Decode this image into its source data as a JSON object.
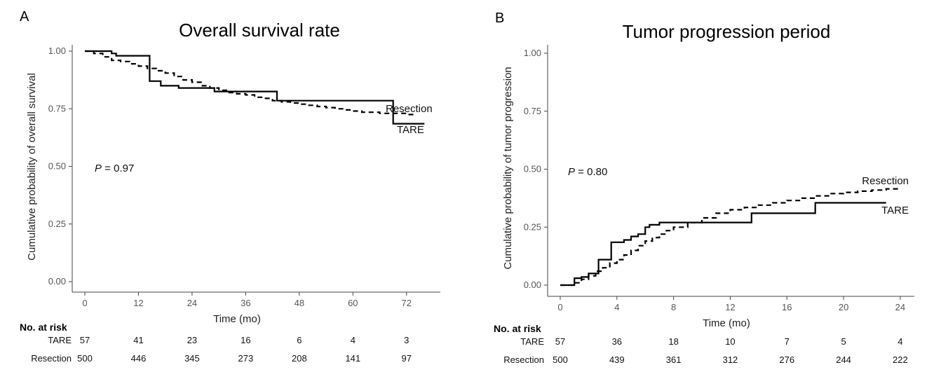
{
  "chart_data": [
    {
      "panel_letter": "A",
      "type": "line",
      "step": true,
      "title": "Overall survival rate",
      "xlabel": "Time (mo)",
      "ylabel": "Cumulative probability of overall survival",
      "xlim": [
        0,
        78
      ],
      "ylim": [
        0,
        1
      ],
      "xticks": [
        "0",
        "12",
        "24",
        "36",
        "48",
        "60",
        "72"
      ],
      "yticks": [
        "0.00",
        "0.25",
        "0.50",
        "0.75",
        "1.00"
      ],
      "grid": false,
      "pvalue": {
        "label": "P",
        "text": " = 0.97"
      },
      "series": [
        {
          "name": "TARE",
          "style": "solid",
          "x": [
            0,
            5,
            6,
            7,
            14,
            14.5,
            17,
            21,
            29,
            43,
            69,
            76
          ],
          "y": [
            1.0,
            1.0,
            0.99,
            0.98,
            0.98,
            0.87,
            0.85,
            0.84,
            0.825,
            0.785,
            0.685,
            0.685
          ]
        },
        {
          "name": "Resection",
          "style": "dashed",
          "x": [
            0,
            2,
            4,
            6,
            8,
            10,
            12,
            14,
            16,
            18,
            20,
            22,
            24,
            26,
            28,
            30,
            32,
            34,
            36,
            38,
            40,
            42,
            44,
            46,
            48,
            50,
            52,
            54,
            56,
            58,
            60,
            62,
            64,
            66,
            68,
            70,
            72,
            74
          ],
          "y": [
            1.0,
            0.99,
            0.975,
            0.96,
            0.955,
            0.945,
            0.935,
            0.925,
            0.915,
            0.905,
            0.89,
            0.875,
            0.865,
            0.85,
            0.84,
            0.83,
            0.82,
            0.815,
            0.81,
            0.8,
            0.795,
            0.785,
            0.78,
            0.775,
            0.77,
            0.765,
            0.76,
            0.755,
            0.75,
            0.745,
            0.74,
            0.735,
            0.735,
            0.73,
            0.73,
            0.73,
            0.725,
            0.725
          ]
        }
      ],
      "labels": {
        "upper": "Resection",
        "lower": "TARE"
      },
      "risk_table": {
        "header": "No. at risk",
        "rows": [
          {
            "label": "TARE",
            "values": [
              "57",
              "41",
              "23",
              "16",
              "6",
              "4",
              "3"
            ]
          },
          {
            "label": "Resection",
            "values": [
              "500",
              "446",
              "345",
              "273",
              "208",
              "141",
              "97"
            ]
          }
        ]
      }
    },
    {
      "panel_letter": "B",
      "type": "line",
      "step": true,
      "title": "Tumor progression period",
      "xlabel": "Time (mo)",
      "ylabel": "Cumulative probability of tumor progression",
      "xlim": [
        0,
        24.5
      ],
      "ylim": [
        0,
        1
      ],
      "xticks": [
        "0",
        "4",
        "8",
        "12",
        "16",
        "20",
        "24"
      ],
      "yticks": [
        "0.00",
        "0.25",
        "0.50",
        "0.75",
        "1.00"
      ],
      "grid": false,
      "pvalue": {
        "label": "P",
        "text": " = 0.80"
      },
      "series": [
        {
          "name": "TARE",
          "style": "solid",
          "x": [
            0,
            1,
            1.5,
            2,
            2.7,
            3.6,
            4.5,
            5,
            5.5,
            6,
            6.3,
            7,
            13.5,
            18,
            23
          ],
          "y": [
            0,
            0.03,
            0.035,
            0.05,
            0.11,
            0.185,
            0.195,
            0.21,
            0.22,
            0.25,
            0.26,
            0.27,
            0.31,
            0.355,
            0.355
          ]
        },
        {
          "name": "Resection",
          "style": "dashed",
          "x": [
            0,
            1,
            1.5,
            2,
            2.5,
            3,
            3.5,
            4,
            4.5,
            5,
            5.5,
            6,
            6.5,
            7,
            7.5,
            8,
            9,
            10,
            11,
            12,
            13,
            14,
            15,
            16,
            17,
            18,
            19,
            20,
            21,
            22,
            23,
            24
          ],
          "y": [
            0,
            0.01,
            0.025,
            0.04,
            0.06,
            0.075,
            0.095,
            0.11,
            0.13,
            0.15,
            0.17,
            0.19,
            0.205,
            0.22,
            0.235,
            0.25,
            0.27,
            0.29,
            0.31,
            0.325,
            0.335,
            0.345,
            0.355,
            0.365,
            0.375,
            0.385,
            0.395,
            0.4,
            0.405,
            0.41,
            0.415,
            0.42
          ]
        }
      ],
      "labels": {
        "upper": "Resection",
        "lower": "TARE"
      },
      "risk_table": {
        "header": "No. at risk",
        "rows": [
          {
            "label": "TARE",
            "values": [
              "57",
              "36",
              "18",
              "10",
              "7",
              "5",
              "4"
            ]
          },
          {
            "label": "Resection",
            "values": [
              "500",
              "439",
              "361",
              "312",
              "276",
              "244",
              "222"
            ]
          }
        ]
      }
    }
  ]
}
